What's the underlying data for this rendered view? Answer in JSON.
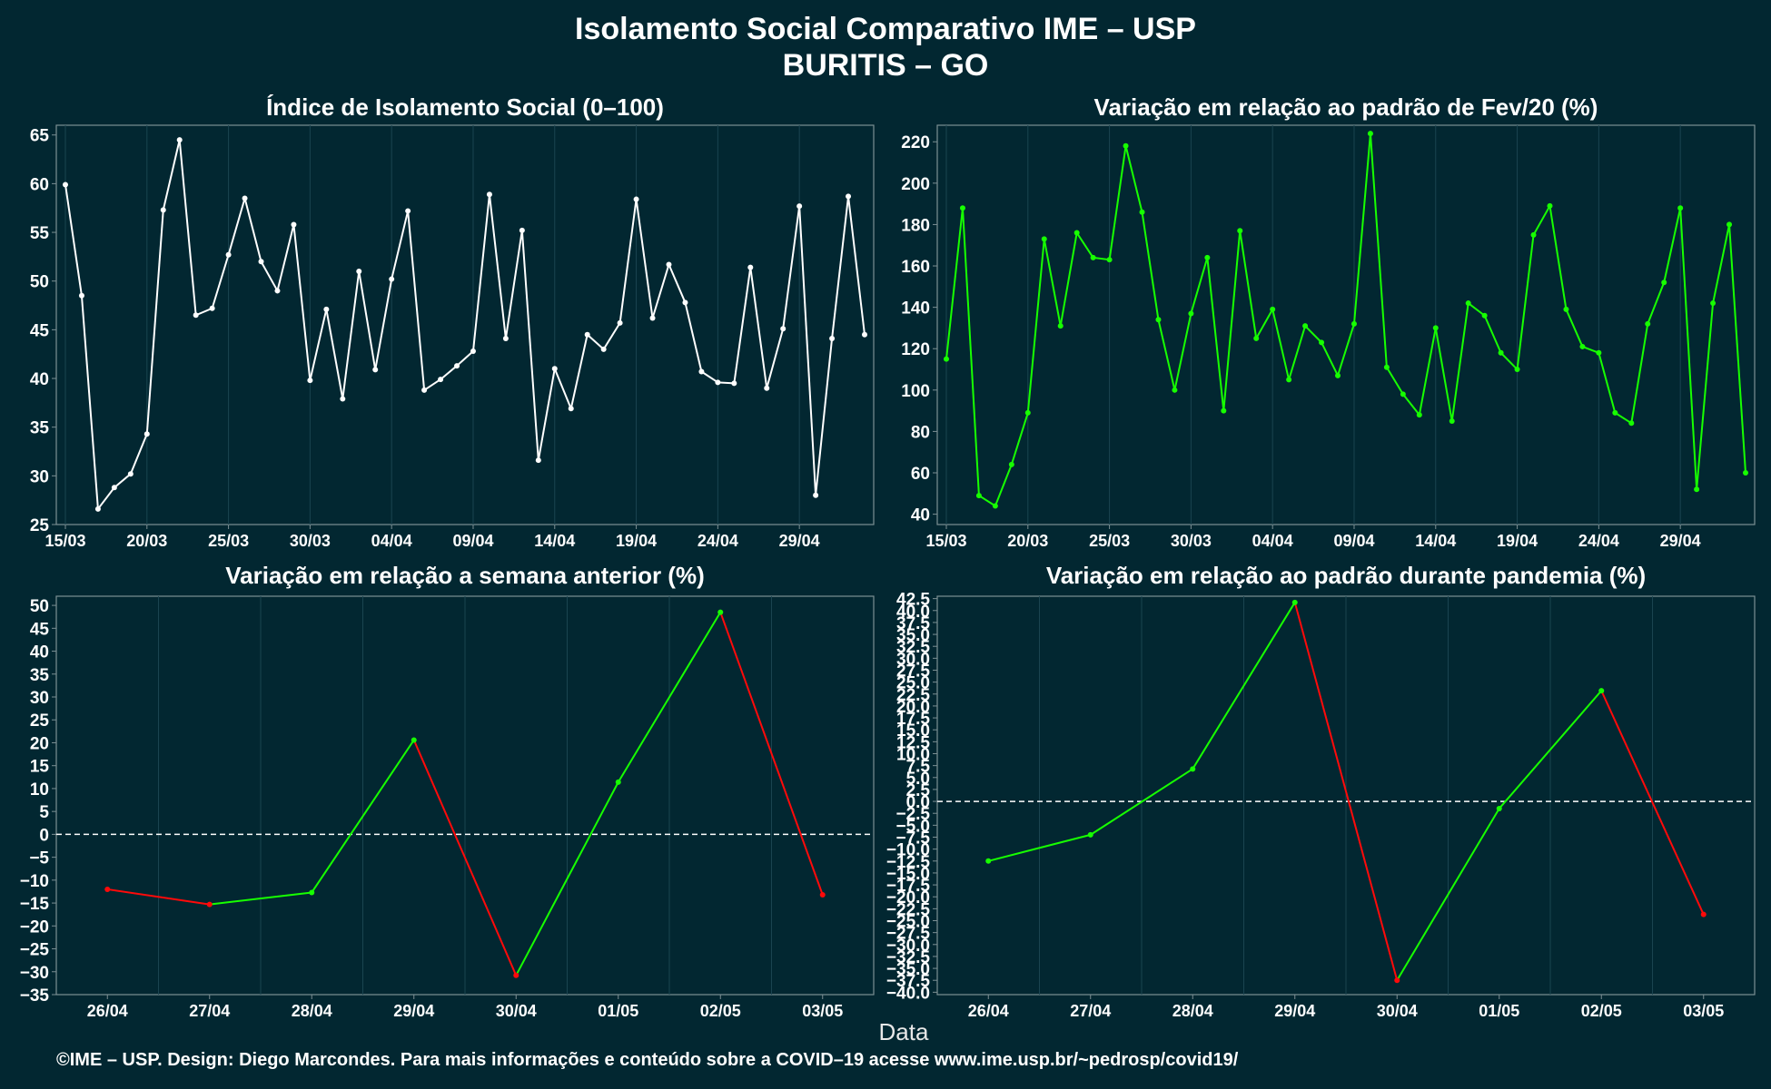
{
  "header": {
    "title": "Isolamento Social Comparativo IME – USP",
    "subtitle": "BURITIS – GO"
  },
  "footer": {
    "x_axis_title": "Data",
    "credit": "©IME – USP. Design: Diego Marcondes. Para mais informações e conteúdo sobre a COVID–19 acesse www.ime.usp.br/~pedrosp/covid19/"
  },
  "colors": {
    "background": "#022731",
    "panel_border": "#7c8f93",
    "grid": "#1a4450",
    "white_series": "#ffffff",
    "green": "#17ff00",
    "red": "#ff0a0a",
    "reference_line": "#ffffff"
  },
  "chart_data": [
    {
      "id": "isolamento",
      "type": "line",
      "title": "Índice de Isolamento Social (0–100)",
      "x_start": "15/03",
      "x_ticks": [
        "15/03",
        "20/03",
        "25/03",
        "30/03",
        "04/04",
        "09/04",
        "14/04",
        "19/04",
        "24/04",
        "29/04"
      ],
      "y_ticks": [
        25,
        30,
        35,
        40,
        45,
        50,
        55,
        60,
        65
      ],
      "ylim": [
        25,
        66
      ],
      "series_color": "white",
      "values": [
        59.9,
        48.5,
        26.6,
        28.8,
        30.2,
        34.3,
        57.3,
        64.5,
        46.5,
        47.2,
        52.7,
        58.5,
        52.0,
        49.0,
        55.8,
        39.8,
        47.1,
        37.9,
        51.0,
        40.9,
        50.2,
        57.2,
        38.8,
        39.9,
        41.3,
        42.8,
        58.9,
        44.1,
        55.2,
        31.6,
        41.0,
        36.9,
        44.5,
        43.0,
        45.7,
        58.4,
        46.2,
        51.7,
        47.8,
        40.7,
        39.6,
        39.5,
        51.4,
        39.0,
        45.1,
        57.7,
        28.0,
        44.1,
        58.7,
        44.5
      ]
    },
    {
      "id": "variacao-fev20",
      "type": "line",
      "title": "Variação em relação ao padrão de Fev/20 (%)",
      "x_start": "15/03",
      "x_ticks": [
        "15/03",
        "20/03",
        "25/03",
        "30/03",
        "04/04",
        "09/04",
        "14/04",
        "19/04",
        "24/04",
        "29/04"
      ],
      "y_ticks": [
        40,
        60,
        80,
        100,
        120,
        140,
        160,
        180,
        200,
        220
      ],
      "ylim": [
        35,
        228
      ],
      "series_color": "green",
      "values": [
        115,
        188,
        49,
        44,
        64,
        89,
        173,
        131,
        176,
        164,
        163,
        218,
        186,
        134,
        100,
        137,
        164,
        90,
        177,
        125,
        139,
        105,
        131,
        123,
        107,
        132,
        224,
        111,
        98,
        88,
        130,
        85,
        142,
        136,
        118,
        110,
        175,
        189,
        139,
        121,
        118,
        89,
        84,
        132,
        152,
        188,
        52,
        142,
        180,
        60
      ]
    },
    {
      "id": "variacao-semana",
      "type": "line",
      "title": "Variação em relação a semana anterior (%)",
      "categories": [
        "26/04",
        "27/04",
        "28/04",
        "29/04",
        "30/04",
        "01/05",
        "02/05",
        "03/05"
      ],
      "y_ticks": [
        -35,
        -30,
        -25,
        -20,
        -15,
        -10,
        -5,
        0,
        5,
        10,
        15,
        20,
        25,
        30,
        35,
        40,
        45,
        50
      ],
      "ylim": [
        -35,
        52
      ],
      "reference_line": 0,
      "coloring": "green when increasing, red when decreasing",
      "values": [
        -12.0,
        -15.3,
        -12.7,
        20.6,
        -30.8,
        11.4,
        48.5,
        -13.2
      ]
    },
    {
      "id": "variacao-pandemia",
      "type": "line",
      "title": "Variação em relação ao padrão durante pandemia (%)",
      "categories": [
        "26/04",
        "27/04",
        "28/04",
        "29/04",
        "30/04",
        "01/05",
        "02/05",
        "03/05"
      ],
      "y_ticks": [
        -40,
        -37.5,
        -35,
        -32.5,
        -30,
        -27.5,
        -25,
        -22.5,
        -20,
        -17.5,
        -15,
        -12.5,
        -10,
        -7.5,
        -5,
        -2.5,
        0,
        2.5,
        5,
        7.5,
        10,
        12.5,
        15,
        17.5,
        20,
        22.5,
        25,
        27.5,
        30,
        32.5,
        35,
        37.5,
        40,
        42.5
      ],
      "y_tick_labels": [
        "−40.0",
        "−37.5",
        "−35.0",
        "−32.5",
        "−30.0",
        "−27.5",
        "−25.0",
        "−22.5",
        "−20.0",
        "−17.5",
        "−15.0",
        "−12.5",
        "−10.0",
        "−7.5",
        "−5.0",
        "−2.5",
        "0.0",
        "2.5",
        "5.0",
        "7.5",
        "10.0",
        "12.5",
        "15.0",
        "17.5",
        "20.0",
        "22.5",
        "25.0",
        "27.5",
        "30.0",
        "32.5",
        "35.0",
        "37.5",
        "40.0",
        "42.5"
      ],
      "ylim": [
        -40.5,
        43
      ],
      "reference_line": 0,
      "coloring": "green when increasing, red when decreasing",
      "values": [
        -12.5,
        -7.0,
        6.8,
        41.7,
        -37.5,
        -1.5,
        23.2,
        -23.7
      ]
    }
  ]
}
